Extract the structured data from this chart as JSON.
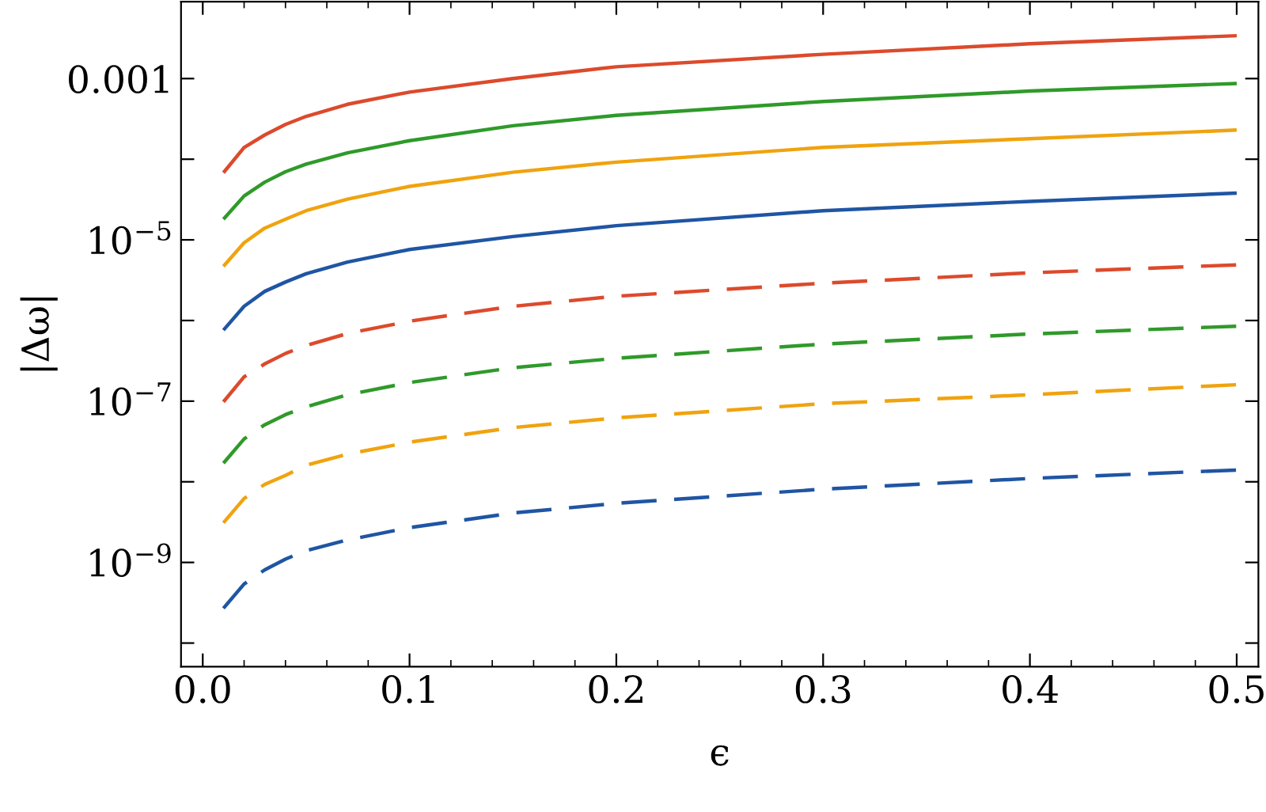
{
  "chart_data": {
    "type": "line",
    "xlabel": "ϵ",
    "ylabel": "|Δω|",
    "log": "y",
    "grid": false,
    "marker": "none",
    "x": [
      0.01,
      0.02,
      0.03,
      0.04,
      0.05,
      0.07,
      0.1,
      0.15,
      0.2,
      0.3,
      0.4,
      0.5
    ],
    "xlim": [
      -0.0105,
      0.5105
    ],
    "xticks": [
      {
        "value": 0.0,
        "label": "0.0"
      },
      0.1,
      0.2,
      0.3,
      0.4,
      0.5
    ],
    "ylim": [
      5.1e-11,
      0.009
    ],
    "yticks": [
      0.001,
      {
        "value": 0.0001,
        "label": null
      },
      {
        "value": 1e-05,
        "label": "10$^{−5}$"
      },
      {
        "value": 1e-06,
        "label": null
      },
      {
        "value": 1e-07,
        "label": "10$^{−7}$"
      },
      {
        "value": 1e-08,
        "label": null
      },
      {
        "value": 1e-09,
        "label": "10$^{−9}$"
      },
      {
        "value": 1e-10,
        "label": null
      }
    ],
    "series": [
      {
        "color": "#dc4a2c",
        "line_style": "solid",
        "values": [
          6.8e-05,
          0.00014,
          0.0002,
          0.00027,
          0.00034,
          0.00048,
          0.00068,
          0.001,
          0.0014,
          0.002,
          0.0027,
          0.0034
        ]
      },
      {
        "color": "#2f9a2a",
        "line_style": "solid",
        "values": [
          1.8e-05,
          3.5e-05,
          5.2e-05,
          7e-05,
          8.7e-05,
          0.00012,
          0.00017,
          0.00026,
          0.00035,
          0.00052,
          0.0007,
          0.00087
        ]
      },
      {
        "color": "#f0a30f",
        "line_style": "solid",
        "values": [
          4.7e-06,
          9.2e-06,
          1.4e-05,
          1.8e-05,
          2.3e-05,
          3.2e-05,
          4.6e-05,
          6.9e-05,
          9.2e-05,
          0.00014,
          0.00018,
          0.00023
        ]
      },
      {
        "color": "#1f55a3",
        "line_style": "solid",
        "values": [
          7.6e-07,
          1.5e-06,
          2.3e-06,
          3e-06,
          3.8e-06,
          5.3e-06,
          7.6e-06,
          1.1e-05,
          1.5e-05,
          2.3e-05,
          3e-05,
          3.8e-05
        ]
      },
      {
        "color": "#dc4a2c",
        "line_style": "dashed",
        "values": [
          9.8e-08,
          2e-07,
          2.9e-07,
          3.9e-07,
          4.9e-07,
          6.9e-07,
          9.8e-07,
          1.5e-06,
          2e-06,
          2.9e-06,
          3.9e-06,
          4.9e-06
        ]
      },
      {
        "color": "#2f9a2a",
        "line_style": "dashed",
        "values": [
          1.7e-08,
          3.4e-08,
          5.1e-08,
          6.8e-08,
          8.5e-08,
          1.2e-07,
          1.7e-07,
          2.6e-07,
          3.4e-07,
          5.1e-07,
          6.8e-07,
          8.5e-07
        ]
      },
      {
        "color": "#f0a30f",
        "line_style": "dashed",
        "values": [
          3.1e-09,
          6.2e-09,
          9.3e-09,
          1.2e-08,
          1.6e-08,
          2.2e-08,
          3.1e-08,
          4.7e-08,
          6.2e-08,
          9.3e-08,
          1.2e-07,
          1.6e-07
        ]
      },
      {
        "color": "#1f55a3",
        "line_style": "dashed",
        "values": [
          2.7e-10,
          5.4e-10,
          8.1e-10,
          1.1e-09,
          1.4e-09,
          1.9e-09,
          2.7e-09,
          4.1e-09,
          5.4e-09,
          8.1e-09,
          1.1e-08,
          1.4e-08
        ]
      }
    ]
  }
}
